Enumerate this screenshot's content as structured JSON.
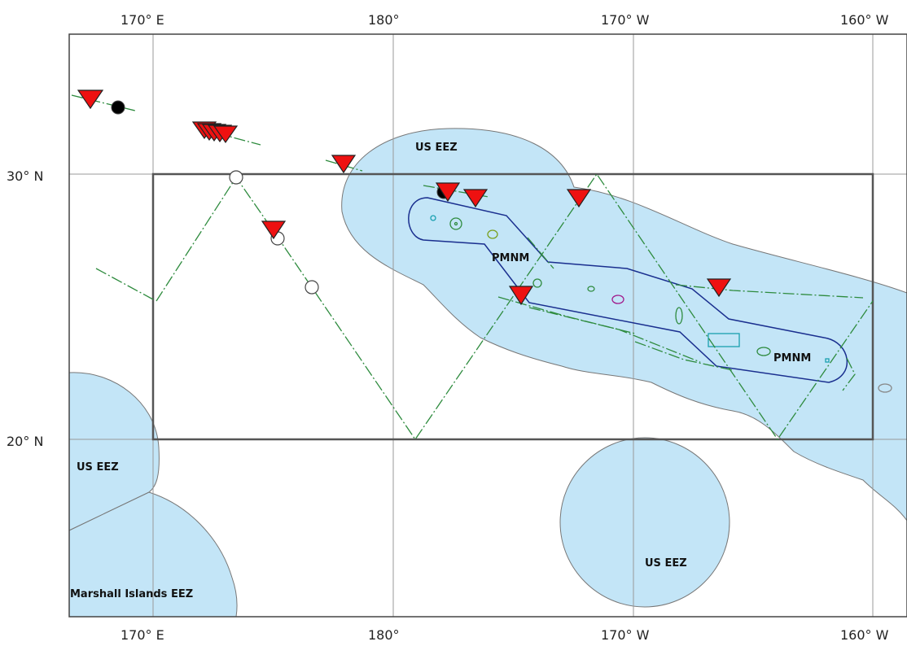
{
  "axes": {
    "top": [
      "170° E",
      "180°",
      "170° W",
      "160° W"
    ],
    "bottom": [
      "170° E",
      "180°",
      "170° W",
      "160° W"
    ],
    "left": [
      "30° N",
      "20° N"
    ]
  },
  "regions": {
    "us_eez_north": "US EEZ",
    "us_eez_west": "US EEZ",
    "us_eez_south": "US EEZ",
    "marshall": "Marshall Islands EEZ",
    "pmnm_west": "PMNM",
    "pmnm_east": "PMNM"
  },
  "colors": {
    "eez_fill": "#c3e5f7",
    "eez_stroke": "#777777",
    "pmnm_outline": "#1a2f8f",
    "track": "#2e8b3e",
    "marker": "#ee1111",
    "grid": "#999999",
    "study_box": "#555555"
  }
}
